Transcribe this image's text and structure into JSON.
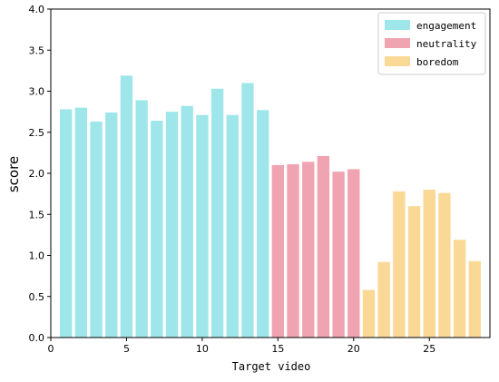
{
  "chart_data": {
    "type": "bar",
    "title": "",
    "xlabel": "Target video",
    "ylabel": "score",
    "xlim": [
      0,
      29
    ],
    "ylim": [
      0,
      4.0
    ],
    "xticks": [
      0,
      5,
      10,
      15,
      20,
      25
    ],
    "yticks": [
      "0.0",
      "0.5",
      "1.0",
      "1.5",
      "2.0",
      "2.5",
      "3.0",
      "3.5",
      "4.0"
    ],
    "grid": false,
    "legend_position": "top-right",
    "series": [
      {
        "name": "engagement",
        "color": "#9ee6ea",
        "x": [
          1,
          2,
          3,
          4,
          5,
          6,
          7,
          8,
          9,
          10,
          11,
          12,
          13,
          14
        ],
        "values": [
          2.78,
          2.8,
          2.63,
          2.74,
          3.19,
          2.89,
          2.64,
          2.75,
          2.82,
          2.71,
          3.03,
          2.71,
          3.1,
          2.77
        ]
      },
      {
        "name": "neutrality",
        "color": "#f0a3b0",
        "x": [
          15,
          16,
          17,
          18,
          19,
          20
        ],
        "values": [
          2.1,
          2.11,
          2.14,
          2.21,
          2.02,
          2.05
        ]
      },
      {
        "name": "boredom",
        "color": "#fad896",
        "x": [
          21,
          22,
          23,
          24,
          25,
          26,
          27,
          28
        ],
        "values": [
          0.58,
          0.92,
          1.78,
          1.6,
          1.8,
          1.76,
          1.19,
          0.93
        ]
      }
    ]
  }
}
